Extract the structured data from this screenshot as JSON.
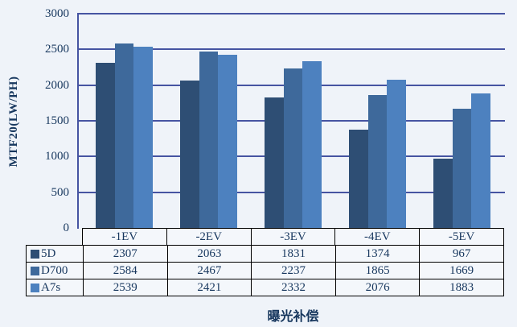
{
  "chart_data": {
    "type": "bar",
    "title": "",
    "ylabel": "MTF20(LW/PH)",
    "xlabel": "曝光补偿",
    "categories": [
      "-1EV",
      "-2EV",
      "-3EV",
      "-4EV",
      "-5EV"
    ],
    "series": [
      {
        "name": "5D",
        "color": "#2E4E74",
        "values": [
          2307,
          2063,
          1831,
          1374,
          967
        ]
      },
      {
        "name": "D700",
        "color": "#3E699B",
        "values": [
          2584,
          2467,
          2237,
          1865,
          1669
        ]
      },
      {
        "name": "A7s",
        "color": "#4D81BF",
        "values": [
          2539,
          2421,
          2332,
          2076,
          1883
        ]
      }
    ],
    "ylim": [
      0,
      3000
    ],
    "yticks": [
      0,
      500,
      1000,
      1500,
      2000,
      2500,
      3000
    ],
    "grid": "horizontal",
    "legend_position": "data-table-left-column",
    "colors": {
      "background": "#EFF3F9",
      "table_background": "#F4F7FB",
      "grid_and_axis": "#4654A2",
      "text": "#17375E",
      "table_border": "#000000"
    }
  }
}
